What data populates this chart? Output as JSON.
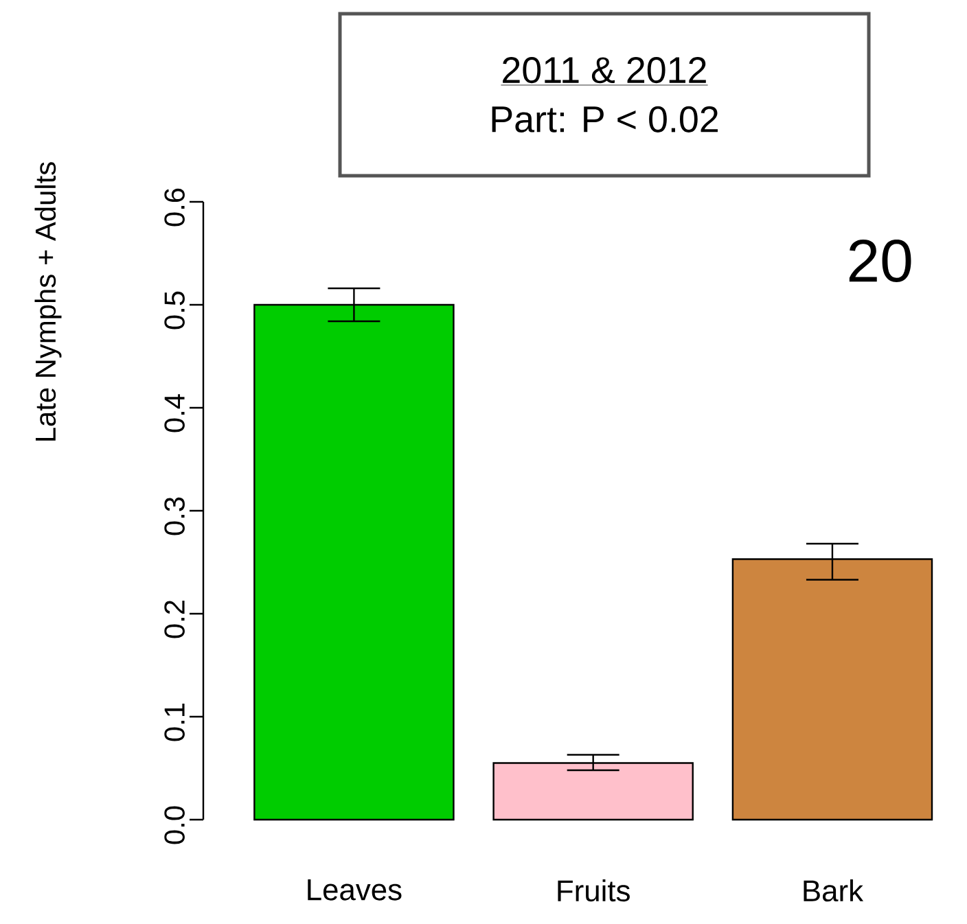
{
  "chart_data": {
    "type": "bar",
    "title": "2011 & 2012",
    "subtitle": "Part: P < 0.02",
    "ylabel": "Late Nymphs + Adults",
    "annotations": [
      "20"
    ],
    "categories": [
      "Leaves",
      "Fruits",
      "Bark"
    ],
    "values": [
      0.5,
      0.055,
      0.253
    ],
    "colors": [
      "#00cc00",
      "#ffc0cb",
      "#cd853f"
    ],
    "errors": [
      [
        0.484,
        0.516
      ],
      [
        0.048,
        0.063
      ],
      [
        0.233,
        0.268
      ]
    ],
    "ylim": [
      0,
      0.6
    ],
    "yticks": [
      {
        "value": 0,
        "label": "0.0"
      },
      0.1,
      0.2,
      0.3,
      0.4,
      0.5,
      0.6
    ]
  }
}
